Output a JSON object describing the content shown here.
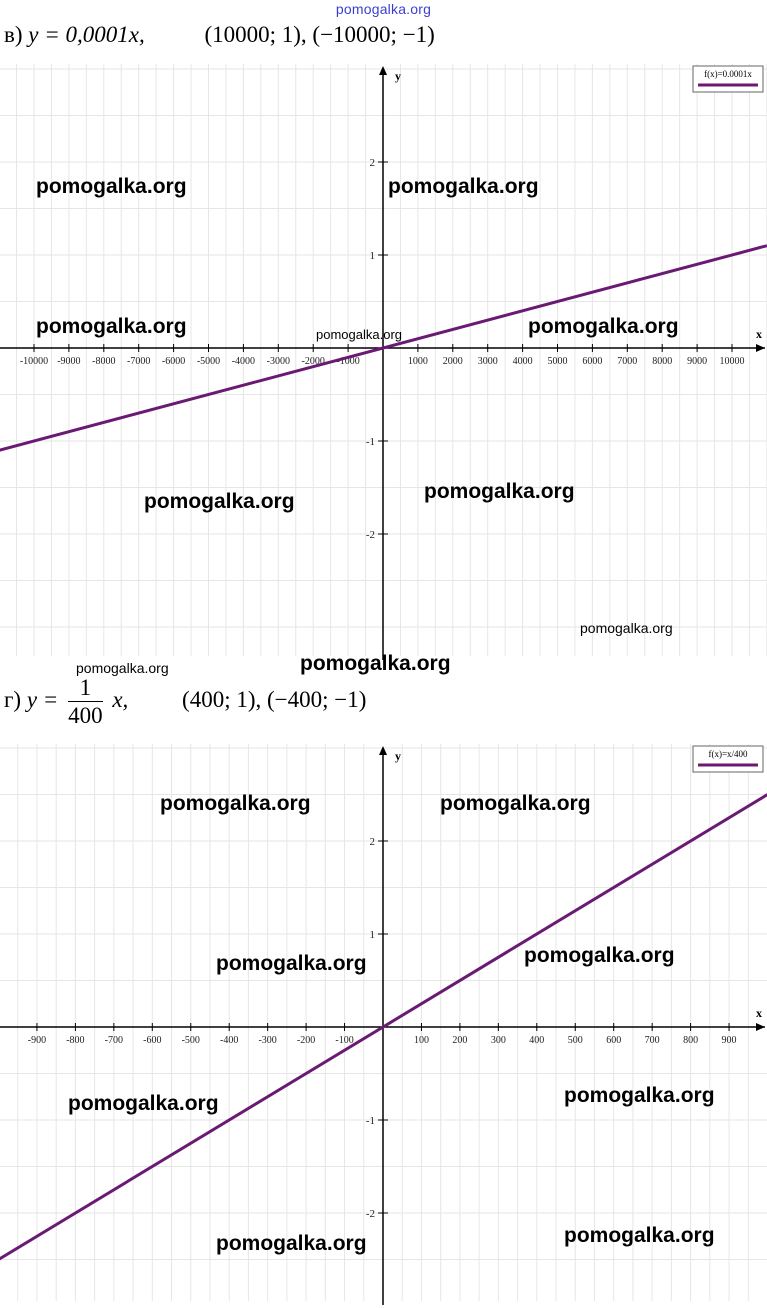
{
  "site_watermark_top": "pomogalka.org",
  "headings": [
    {
      "letter": "в)",
      "equation": "y = 0,0001x,",
      "points": "(10000; 1), (−10000; −1)"
    },
    {
      "letter": "г)",
      "eq_prefix": "y =",
      "frac_num": "1",
      "frac_den": "400",
      "eq_suffix": "x,",
      "points": "(400; 1), (−400;  −1)"
    }
  ],
  "watermark_text": "pomogalka.org",
  "chart_data": [
    {
      "type": "line",
      "legend": "f(x)=0.0001x",
      "legend_position": "top-right",
      "xlabel": "x",
      "ylabel": "y",
      "grid": true,
      "x_ticks": [
        -10000,
        -9000,
        -8000,
        -7000,
        -6000,
        -5000,
        -4000,
        -3000,
        -2000,
        -1000,
        1000,
        2000,
        3000,
        4000,
        5000,
        6000,
        7000,
        8000,
        9000,
        10000
      ],
      "y_ticks": [
        -2,
        -1,
        1,
        2
      ],
      "xlim": [
        -11000,
        11000
      ],
      "ylim": [
        -3,
        3
      ],
      "series": [
        {
          "name": "f(x)=0.0001x",
          "color": "#6a1a72",
          "x": [
            -11000,
            11000
          ],
          "y": [
            -1.1,
            1.1
          ]
        }
      ]
    },
    {
      "type": "line",
      "legend": "f(x)=x/400",
      "legend_position": "top-right",
      "xlabel": "x",
      "ylabel": "y",
      "grid": true,
      "x_ticks": [
        -900,
        -800,
        -700,
        -600,
        -500,
        -400,
        -300,
        -200,
        -100,
        100,
        200,
        300,
        400,
        500,
        600,
        700,
        800,
        900
      ],
      "y_ticks": [
        -2,
        -1,
        1,
        2
      ],
      "xlim": [
        -1000,
        1000
      ],
      "ylim": [
        -3,
        3
      ],
      "series": [
        {
          "name": "f(x)=x/400",
          "color": "#6a1a72",
          "x": [
            -1000,
            1000
          ],
          "y": [
            -2.5,
            2.5
          ]
        }
      ]
    }
  ]
}
